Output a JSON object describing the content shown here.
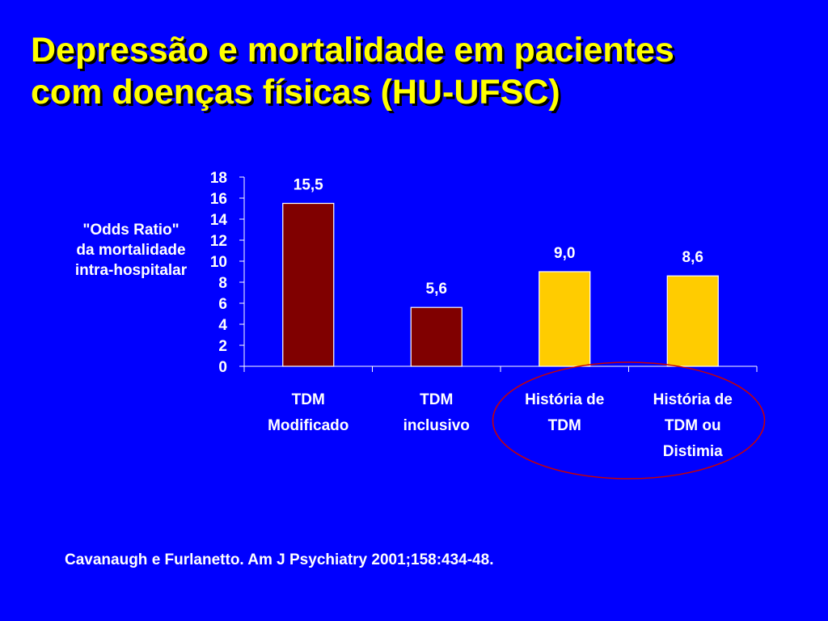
{
  "title": {
    "line1": "Depressão e mortalidade em pacientes",
    "line2": "com doenças físicas (HU-UFSC)"
  },
  "colors": {
    "background": "#0000ff",
    "title": "#ffff00",
    "text": "#ffffff",
    "highlight_ellipse": "#cc0000"
  },
  "chart_data": {
    "type": "bar",
    "ylabel": [
      "\"Odds Ratio\"",
      "da mortalidade",
      "intra-hospitalar"
    ],
    "ylim": [
      0,
      18
    ],
    "yticks": [
      "0",
      "2",
      "4",
      "6",
      "8",
      "10",
      "12",
      "14",
      "16",
      "18"
    ],
    "grid": false,
    "categories": [
      [
        "TDM",
        "Modificado"
      ],
      [
        "TDM",
        "inclusivo"
      ],
      [
        "História de",
        "TDM"
      ],
      [
        "História de",
        "TDM ou",
        "Distimia"
      ]
    ],
    "values": [
      15.5,
      5.6,
      9.0,
      8.6
    ],
    "data_labels": [
      "15,5",
      "5,6",
      "9,0",
      "8,6"
    ],
    "bar_colors": [
      "#800000",
      "#800000",
      "#ffcc00",
      "#ffcc00"
    ],
    "highlighted_categories": [
      2,
      3
    ]
  },
  "citation": "Cavanaugh e Furlanetto. Am J Psychiatry 2001;158:434-48."
}
